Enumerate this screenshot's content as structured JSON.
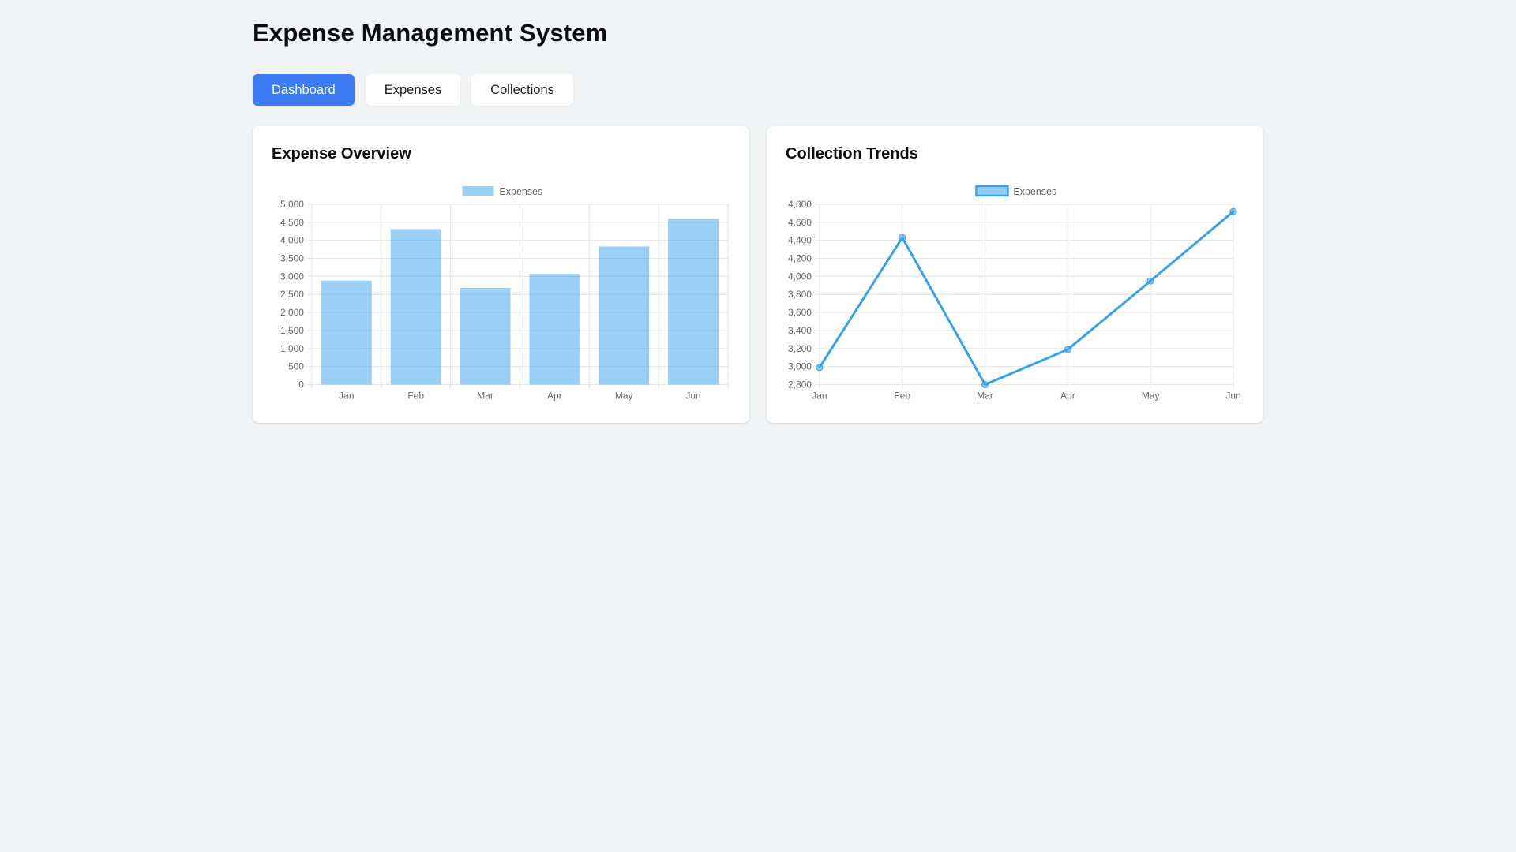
{
  "header": {
    "title": "Expense Management System"
  },
  "tabs": [
    {
      "label": "Dashboard",
      "active": true
    },
    {
      "label": "Expenses",
      "active": false
    },
    {
      "label": "Collections",
      "active": false
    }
  ],
  "colors": {
    "page_background": "#f2f3f5",
    "active_tab": "#3d7bf5",
    "bar_fill": "rgba(54,162,235,0.5)",
    "line_stroke": "#36a2eb",
    "point_fill": "rgba(54,162,235,0.55)",
    "axis_text": "#666666",
    "gridline": "#e6e6e6",
    "card_background": "#ffffff"
  },
  "chart_data": [
    {
      "type": "bar",
      "title": "Expense Overview",
      "legend_label": "Expenses",
      "legend_position": "top",
      "grid": true,
      "categories": [
        "Jan",
        "Feb",
        "Mar",
        "Apr",
        "May",
        "Jun"
      ],
      "values": [
        2880,
        4310,
        2680,
        3070,
        3830,
        4600
      ],
      "xlabel": "",
      "ylabel": "",
      "ylim": [
        0,
        5000
      ],
      "ytick_step": 500
    },
    {
      "type": "line",
      "title": "Collection Trends",
      "legend_label": "Expenses",
      "legend_position": "top",
      "grid": true,
      "categories": [
        "Jan",
        "Feb",
        "Mar",
        "Apr",
        "May",
        "Jun"
      ],
      "values": [
        2990,
        4430,
        2800,
        3190,
        3950,
        4720
      ],
      "xlabel": "",
      "ylabel": "",
      "ylim": [
        2800,
        4800
      ],
      "ytick_step": 200
    }
  ]
}
